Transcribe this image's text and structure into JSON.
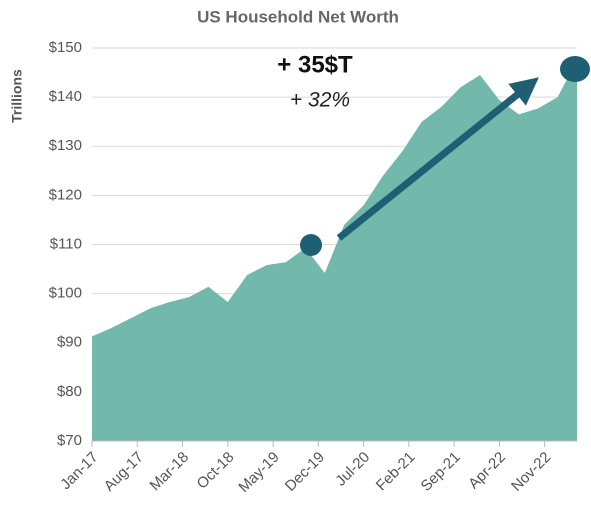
{
  "chart_data": {
    "type": "area",
    "title": "US Household Net Worth",
    "y_label": "Trillions",
    "annotations": [
      "+ 35$T",
      "+ 32%"
    ],
    "color": "#72b8ab",
    "x": [
      "Jan-17",
      "Apr-17",
      "Jul-17",
      "Oct-17",
      "Jan-18",
      "Apr-18",
      "Jul-18",
      "Oct-18",
      "Jan-19",
      "Apr-19",
      "Jul-19",
      "Oct-19",
      "Jan-20",
      "Apr-20",
      "Jul-20",
      "Oct-20",
      "Jan-21",
      "Apr-21",
      "Jul-21",
      "Oct-21",
      "Jan-22",
      "Apr-22",
      "Jul-22",
      "Oct-22",
      "Jan-23",
      "Apr-23"
    ],
    "values": [
      91.3,
      93,
      95,
      97,
      98.3,
      99.3,
      101.4,
      98.3,
      103.8,
      105.8,
      106.4,
      109.3,
      104.2,
      114,
      118,
      124,
      129,
      135,
      138,
      142,
      144.5,
      139.4,
      136.5,
      137.7,
      140,
      147.5
    ],
    "xlim": [
      "Jan-17",
      "Apr-23"
    ],
    "xticks": [
      "Jan-17",
      "Aug-17",
      "Mar-18",
      "Oct-18",
      "May-19",
      "Dec-19",
      "Jul-20",
      "Feb-21",
      "Sep-21",
      "Apr-22",
      "Nov-22"
    ],
    "ylim": [
      70,
      150
    ],
    "yticks": [
      {
        "value": 70,
        "label": "$70"
      },
      {
        "value": 80,
        "label": "$80"
      },
      {
        "value": 90,
        "label": "$90"
      },
      {
        "value": 100,
        "label": "$100"
      },
      {
        "value": 110,
        "label": "$110"
      },
      {
        "value": 120,
        "label": "$120"
      },
      {
        "value": 130,
        "label": "$130"
      },
      {
        "value": 140,
        "label": "$140"
      },
      {
        "value": 150,
        "label": "$150"
      }
    ],
    "grid": true
  }
}
